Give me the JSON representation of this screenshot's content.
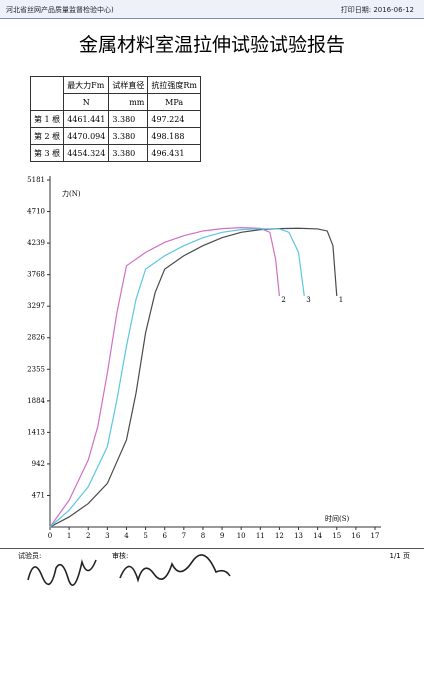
{
  "header": {
    "org": "河北省丝网产品质量监督检验中心)",
    "print_date": "打印日期: 2016-06-12"
  },
  "title": "金属材料室温拉伸试验试验报告",
  "table": {
    "header": [
      "最大力Fm",
      "试样直径",
      "抗拉强度Rm"
    ],
    "units": [
      "N",
      "mm",
      "MPa"
    ],
    "rows": [
      [
        "第 1 根",
        "4461.441",
        "3.380",
        "497.224"
      ],
      [
        "第 2 根",
        "4470.094",
        "3.380",
        "498.188"
      ],
      [
        "第 3 根",
        "4454.324",
        "3.380",
        "496.431"
      ]
    ]
  },
  "chart_data": {
    "type": "line",
    "y_label": "力(N)",
    "x_label": "时间(S)",
    "xlim": [
      0,
      17
    ],
    "xticks": [
      0,
      1,
      2,
      3,
      4,
      5,
      6,
      7,
      8,
      9,
      10,
      11,
      12,
      13,
      14,
      15,
      16,
      17
    ],
    "ylim": [
      0,
      5181
    ],
    "yticks": [
      471,
      942,
      1413,
      1884,
      2355,
      2826,
      3297,
      3768,
      4239,
      4710,
      5181
    ],
    "series": [
      {
        "name": "1",
        "color": "#4a4a4a",
        "x": [
          0,
          1,
          2,
          3,
          4,
          4.5,
          5,
          5.5,
          6,
          7,
          8,
          9,
          10,
          11,
          12,
          13,
          14,
          14.5,
          14.8,
          15
        ],
        "values": [
          0,
          150,
          350,
          650,
          1300,
          2000,
          2900,
          3500,
          3850,
          4050,
          4200,
          4320,
          4400,
          4440,
          4455,
          4461,
          4450,
          4420,
          4200,
          3450
        ]
      },
      {
        "name": "2",
        "color": "#d070c0",
        "x": [
          0,
          1,
          2,
          2.5,
          3,
          3.5,
          4,
          5,
          6,
          7,
          8,
          9,
          10,
          11,
          11.5,
          11.8,
          12
        ],
        "values": [
          0,
          400,
          1000,
          1500,
          2300,
          3200,
          3900,
          4100,
          4250,
          4350,
          4420,
          4455,
          4470,
          4460,
          4400,
          4000,
          3450
        ]
      },
      {
        "name": "3",
        "color": "#5cc6e0",
        "x": [
          0,
          1,
          2,
          3,
          3.5,
          4,
          4.5,
          5,
          6,
          7,
          8,
          9,
          10,
          11,
          12,
          12.5,
          13,
          13.3
        ],
        "values": [
          0,
          250,
          600,
          1200,
          1900,
          2700,
          3400,
          3850,
          4050,
          4200,
          4320,
          4400,
          4440,
          4454,
          4450,
          4400,
          4100,
          3450
        ]
      }
    ]
  },
  "footer": {
    "tester": "试验员:",
    "reviewer": "审核:",
    "page": "1/1 页"
  }
}
